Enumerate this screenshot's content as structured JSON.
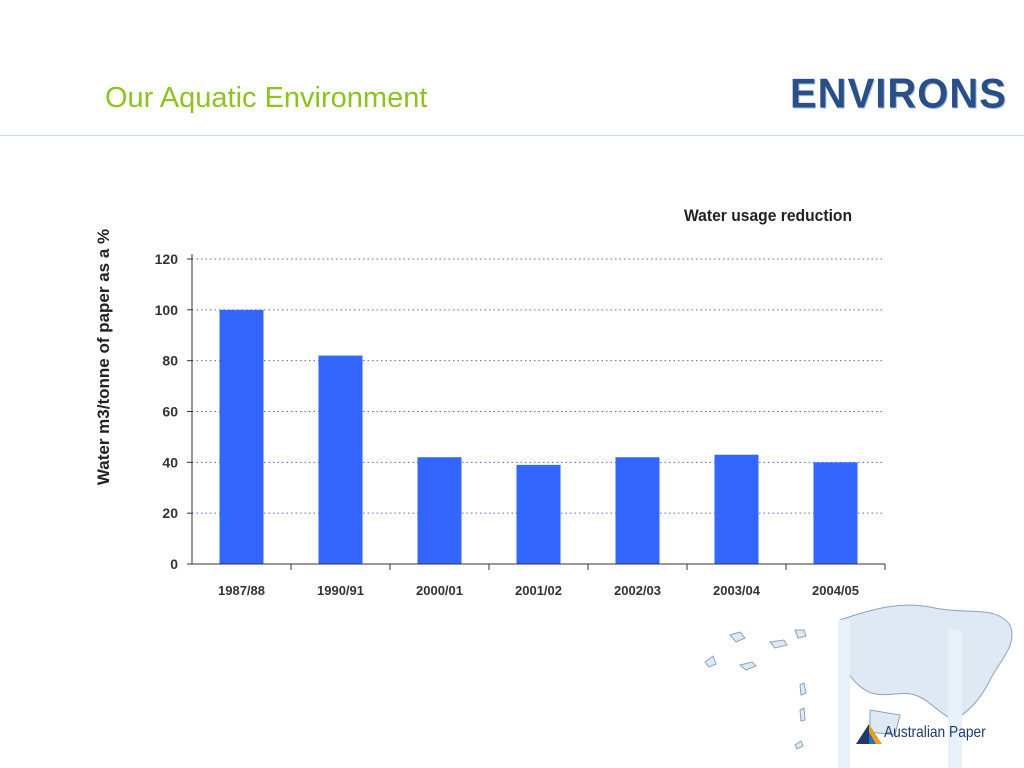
{
  "slide": {
    "title": "Our Aquatic Environment",
    "brand_logo": "ENVIRONS",
    "company_logo": "Australian Paper"
  },
  "chart_data": {
    "type": "bar",
    "title": "Water usage reduction",
    "xlabel": "",
    "ylabel": "Water m3/tonne of paper as a %",
    "categories": [
      "1987/88",
      "1990/91",
      "2000/01",
      "2001/02",
      "2002/03",
      "2003/04",
      "2004/05"
    ],
    "values": [
      100,
      82,
      42,
      39,
      42,
      43,
      40
    ],
    "ylim": [
      0,
      120
    ],
    "yticks": [
      0,
      20,
      40,
      60,
      80,
      100,
      120
    ],
    "grid": true,
    "bar_color": "#3366ff",
    "grid_color": "#4a6fc4"
  },
  "colors": {
    "title": "#8dc21f",
    "header_rule": "#c8dceb"
  }
}
